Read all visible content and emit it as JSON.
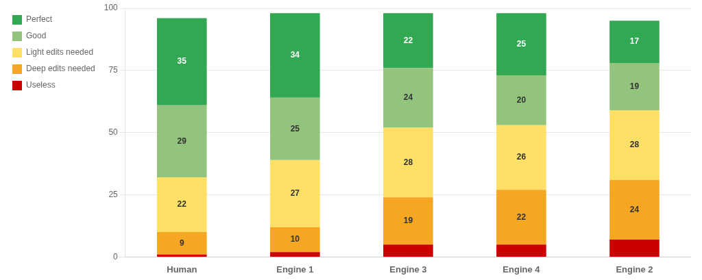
{
  "chart_data": {
    "type": "bar",
    "stacked": true,
    "categories": [
      "Human",
      "Engine 1",
      "Engine 3",
      "Engine 4",
      "Engine 2"
    ],
    "series": [
      {
        "name": "Useless",
        "color": "#cc0000",
        "values": [
          1,
          2,
          5,
          5,
          7
        ],
        "data_labels": false
      },
      {
        "name": "Deep edits needed",
        "color": "#f5a623",
        "values": [
          9,
          10,
          19,
          22,
          24
        ],
        "data_labels": true
      },
      {
        "name": "Light edits needed",
        "color": "#ffe066",
        "values": [
          22,
          27,
          28,
          26,
          28
        ],
        "data_labels": true
      },
      {
        "name": "Good",
        "color": "#93c47d",
        "values": [
          29,
          25,
          24,
          20,
          19
        ],
        "data_labels": true
      },
      {
        "name": "Perfect",
        "color": "#33a852",
        "values": [
          35,
          34,
          22,
          25,
          17
        ],
        "data_labels": true
      }
    ],
    "ylim": [
      0,
      100
    ],
    "yticks": [
      0,
      25,
      50,
      75,
      100
    ],
    "grid": true,
    "legend": "left"
  }
}
